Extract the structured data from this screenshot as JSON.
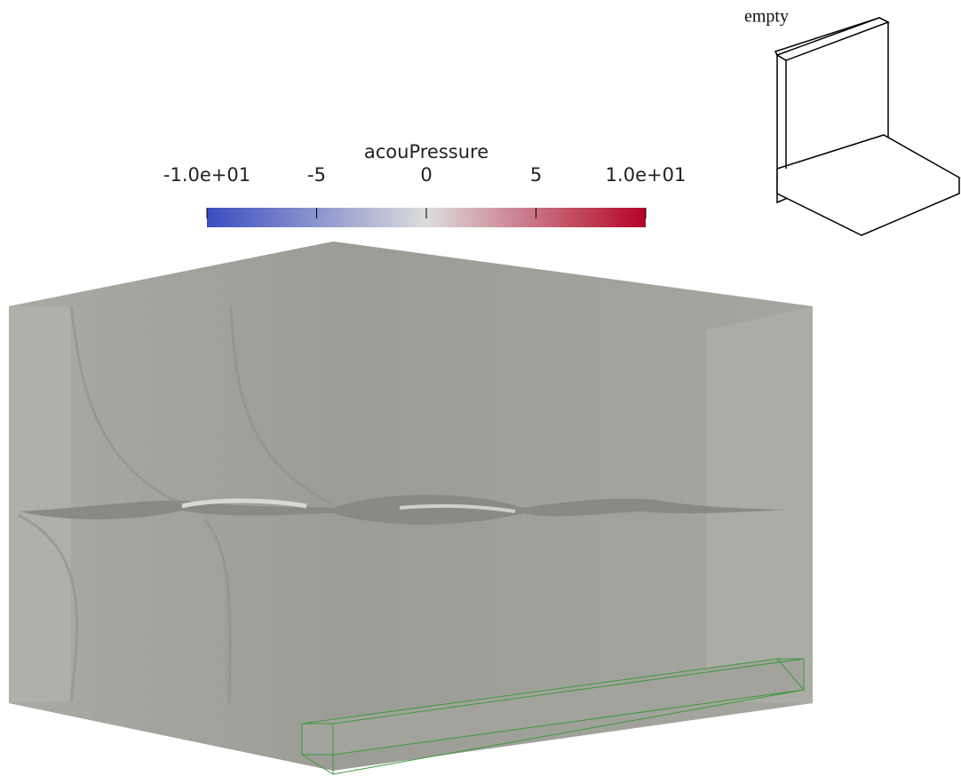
{
  "colorbar": {
    "title": "acouPressure",
    "range": [
      -10,
      10
    ],
    "ticks": [
      {
        "value": -10,
        "label": "-1.0e+01"
      },
      -5,
      0,
      5,
      {
        "value": 10,
        "label": "1.0e+01"
      }
    ],
    "colors": [
      "#3b4cc0",
      "#dddddd",
      "#b40426"
    ]
  },
  "orientation_label": "empty"
}
